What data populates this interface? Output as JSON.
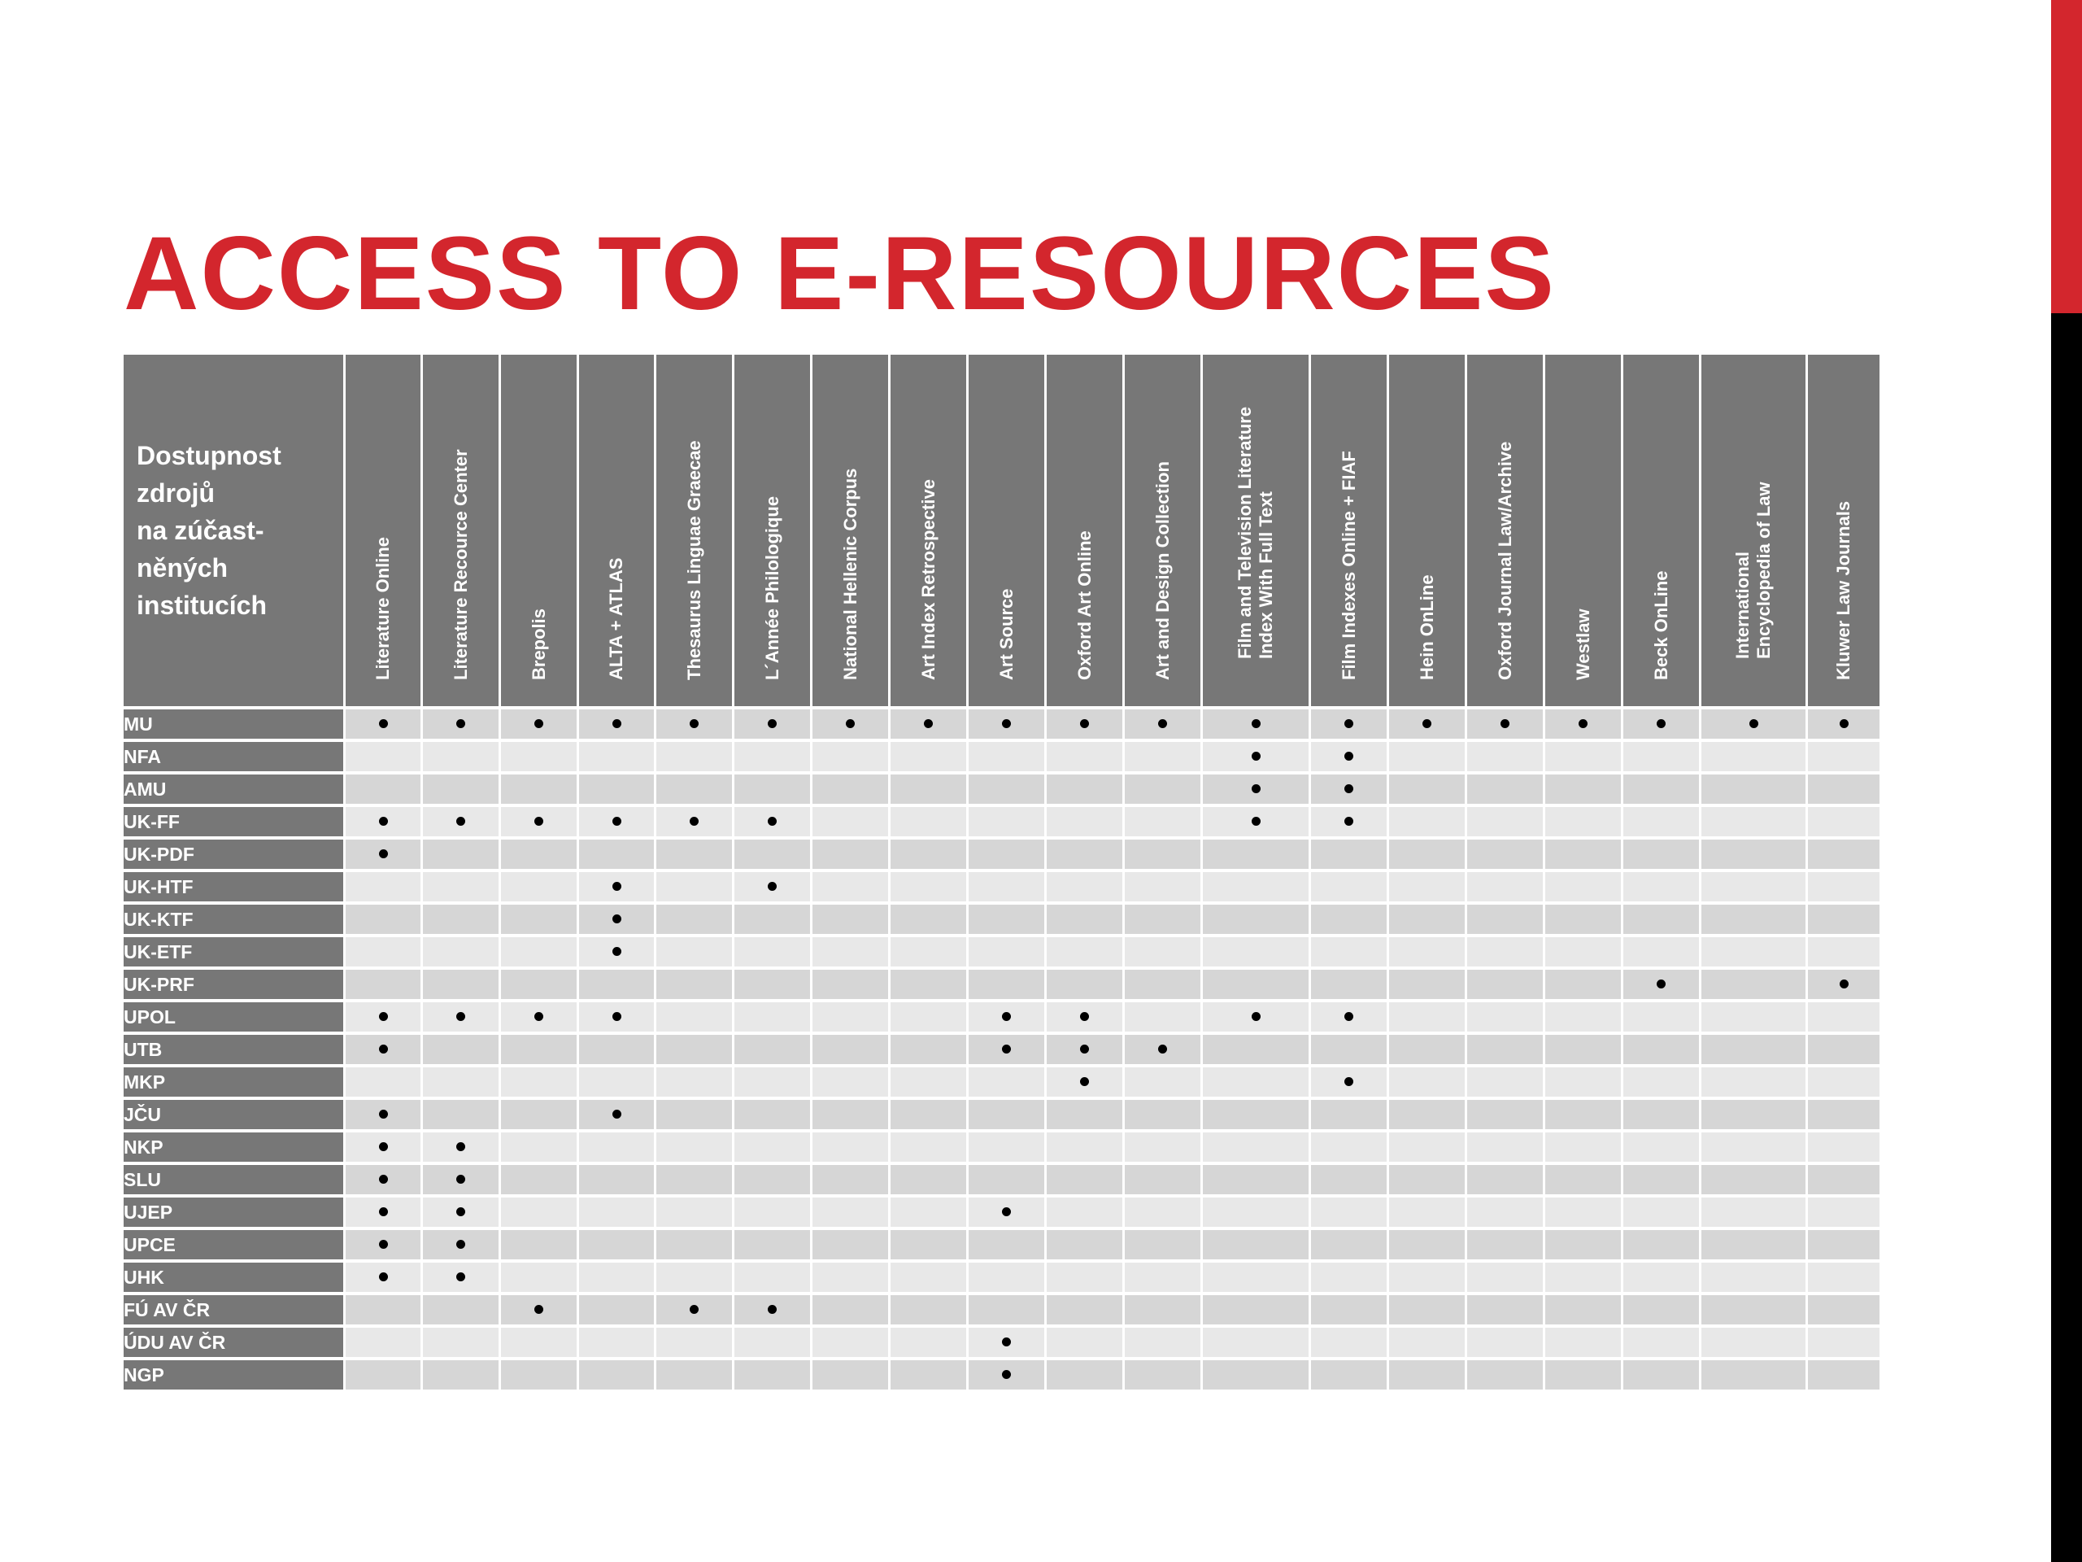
{
  "title": "ACCESS TO E-RESOURCES",
  "table": {
    "corner_lines": [
      "Dostupnost",
      "zdrojů",
      "na zúčast-",
      "něných",
      "institucích"
    ],
    "columns": [
      {
        "lines": [
          "Literature Online"
        ]
      },
      {
        "lines": [
          "Literature Recource Center"
        ]
      },
      {
        "lines": [
          "Brepolis"
        ]
      },
      {
        "lines": [
          "ALTA + ATLAS"
        ]
      },
      {
        "lines": [
          "Thesaurus Linguae Graecae"
        ]
      },
      {
        "lines": [
          "L´Année Philologique"
        ]
      },
      {
        "lines": [
          "National Hellenic Corpus"
        ]
      },
      {
        "lines": [
          "Art Index Retrospective"
        ]
      },
      {
        "lines": [
          "Art Source"
        ]
      },
      {
        "lines": [
          "Oxford Art Online"
        ]
      },
      {
        "lines": [
          "Art and Design Collection"
        ]
      },
      {
        "lines": [
          "Film and Television Literature",
          "Index With Full Text"
        ]
      },
      {
        "lines": [
          "Film Indexes Online + FIAF"
        ]
      },
      {
        "lines": [
          "Hein OnLine"
        ]
      },
      {
        "lines": [
          "Oxford Journal Law/Archive"
        ]
      },
      {
        "lines": [
          "Westlaw"
        ]
      },
      {
        "lines": [
          "Beck OnLine"
        ]
      },
      {
        "lines": [
          "International",
          "Encyclopedia of Law"
        ]
      },
      {
        "lines": [
          "Kluwer Law Journals"
        ]
      }
    ],
    "rows": [
      {
        "label": "MU",
        "access": [
          0,
          1,
          2,
          3,
          4,
          5,
          6,
          7,
          8,
          9,
          10,
          11,
          12,
          13,
          14,
          15,
          16,
          17,
          18
        ]
      },
      {
        "label": "NFA",
        "access": [
          11,
          12
        ]
      },
      {
        "label": "AMU",
        "access": [
          11,
          12
        ]
      },
      {
        "label": "UK-FF",
        "access": [
          0,
          1,
          2,
          3,
          4,
          5,
          11,
          12
        ]
      },
      {
        "label": "UK-PDF",
        "access": [
          0
        ]
      },
      {
        "label": "UK-HTF",
        "access": [
          3,
          5
        ]
      },
      {
        "label": "UK-KTF",
        "access": [
          3
        ]
      },
      {
        "label": "UK-ETF",
        "access": [
          3
        ]
      },
      {
        "label": "UK-PRF",
        "access": [
          16,
          18
        ]
      },
      {
        "label": "UPOL",
        "access": [
          0,
          1,
          2,
          3,
          8,
          9,
          11,
          12
        ]
      },
      {
        "label": "UTB",
        "access": [
          0,
          8,
          9,
          10
        ]
      },
      {
        "label": "MKP",
        "access": [
          9,
          12
        ]
      },
      {
        "label": "JČU",
        "access": [
          0,
          3
        ]
      },
      {
        "label": "NKP",
        "access": [
          0,
          1
        ]
      },
      {
        "label": "SLU",
        "access": [
          0,
          1
        ]
      },
      {
        "label": "UJEP",
        "access": [
          0,
          1,
          8
        ]
      },
      {
        "label": "UPCE",
        "access": [
          0,
          1
        ]
      },
      {
        "label": "UHK",
        "access": [
          0,
          1
        ]
      },
      {
        "label": "FÚ AV ČR",
        "access": [
          2,
          4,
          5
        ]
      },
      {
        "label": "ÚDU AV ČR",
        "access": [
          8
        ]
      },
      {
        "label": "NGP",
        "access": [
          8
        ]
      }
    ]
  }
}
